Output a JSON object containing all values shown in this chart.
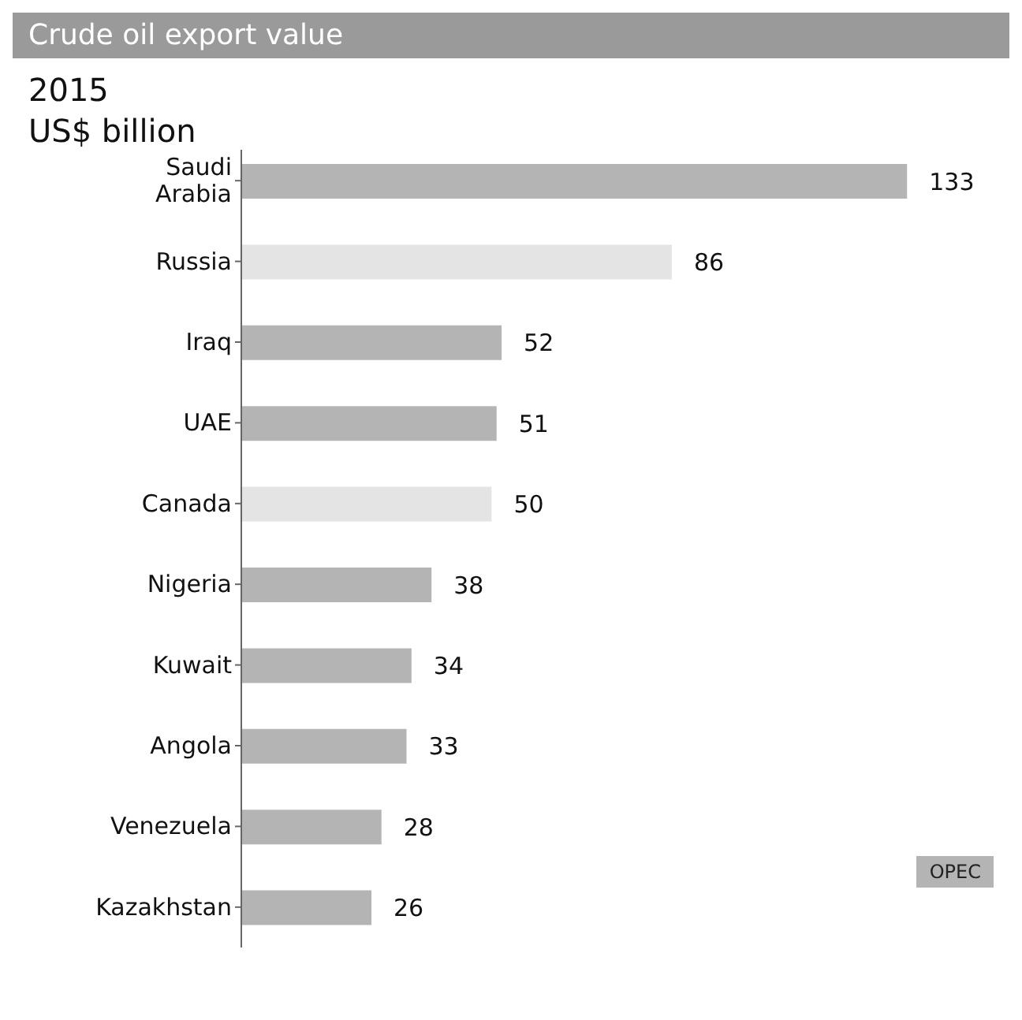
{
  "chart_data": {
    "type": "bar",
    "orientation": "horizontal",
    "stacked": true,
    "title": "Crude oil export value",
    "subtitle": "2015",
    "xlabel": "US$ billion",
    "categories": [
      "Saudi\nArabia",
      "Russia",
      "Iraq",
      "UAE",
      "Canada",
      "Nigeria",
      "Kuwait",
      "Angola",
      "Venezuela",
      "Kazakhstan"
    ],
    "series": [
      {
        "name": "OPEC",
        "color": "#b4b4b4",
        "values": [
          133,
          null,
          52,
          51,
          null,
          38,
          34,
          33,
          28,
          26
        ]
      },
      {
        "color": "#e4e4e4",
        "values": [
          null,
          86,
          null,
          null,
          50,
          null,
          null,
          null,
          null,
          null
        ]
      }
    ],
    "data_labels": true,
    "legend": "bottom right"
  }
}
